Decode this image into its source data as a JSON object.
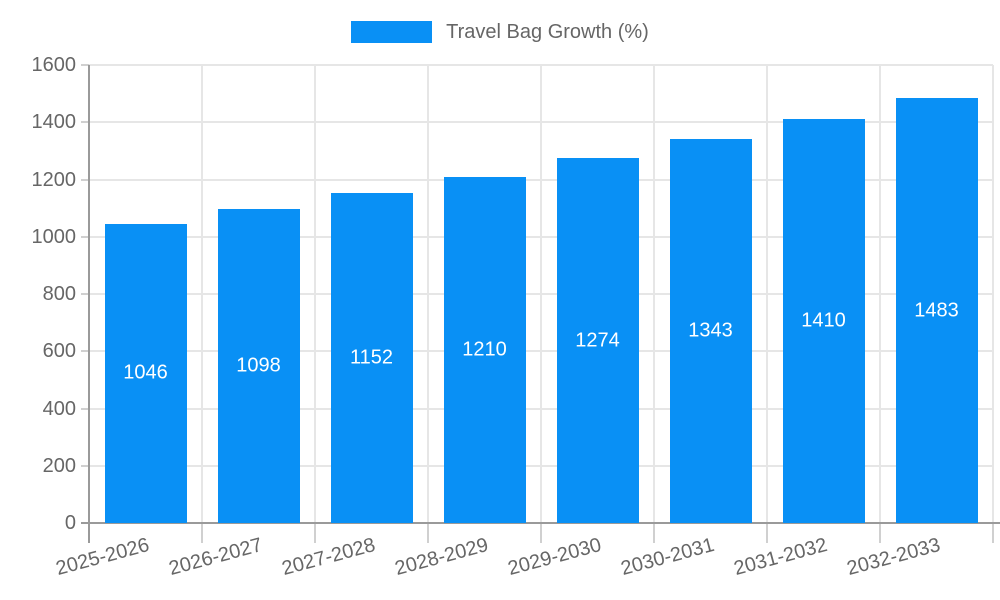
{
  "chart_data": {
    "type": "bar",
    "title": "",
    "legend": "Travel Bag Growth (%)",
    "legend_position": "top-center",
    "categories": [
      "2025-2026",
      "2026-2027",
      "2027-2028",
      "2028-2029",
      "2029-2030",
      "2030-2031",
      "2031-2032",
      "2032-2033"
    ],
    "values": [
      1046,
      1098,
      1152,
      1210,
      1274,
      1343,
      1410,
      1483
    ],
    "xlabel": "",
    "ylabel": "",
    "ylim": [
      0,
      1600
    ],
    "yticks": [
      0,
      200,
      400,
      600,
      800,
      1000,
      1200,
      1400,
      1600
    ],
    "grid": true,
    "bar_color": "#0990f5",
    "bar_label_color": "#ffffff",
    "axis_text_color": "#666666",
    "grid_color": "#e6e6e6",
    "axis_line_color": "#9a9a9a"
  }
}
